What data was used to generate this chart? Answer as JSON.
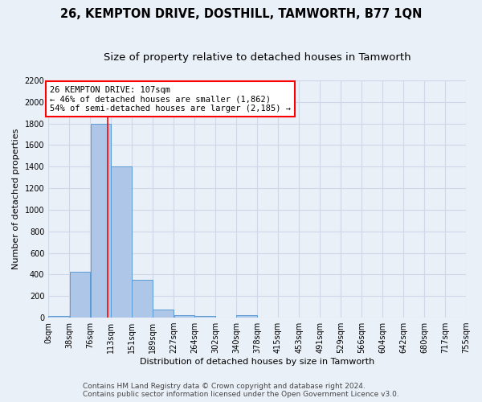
{
  "title": "26, KEMPTON DRIVE, DOSTHILL, TAMWORTH, B77 1QN",
  "subtitle": "Size of property relative to detached houses in Tamworth",
  "xlabel": "Distribution of detached houses by size in Tamworth",
  "ylabel": "Number of detached properties",
  "footer_line1": "Contains HM Land Registry data © Crown copyright and database right 2024.",
  "footer_line2": "Contains public sector information licensed under the Open Government Licence v3.0.",
  "bin_edges": [
    0,
    38,
    76,
    113,
    151,
    189,
    227,
    264,
    302,
    340,
    378,
    415,
    453,
    491,
    529,
    566,
    604,
    642,
    680,
    717,
    755
  ],
  "bar_heights": [
    15,
    425,
    1800,
    1400,
    350,
    75,
    25,
    15,
    0,
    20,
    0,
    0,
    0,
    0,
    0,
    0,
    0,
    0,
    0,
    0
  ],
  "bar_color": "#aec6e8",
  "bar_edgecolor": "#5b9bd5",
  "grid_color": "#d0d8e8",
  "property_line_x": 107,
  "property_line_color": "red",
  "annotation_text": "26 KEMPTON DRIVE: 107sqm\n← 46% of detached houses are smaller (1,862)\n54% of semi-detached houses are larger (2,185) →",
  "annotation_box_edgecolor": "red",
  "annotation_box_facecolor": "white",
  "ylim": [
    0,
    2200
  ],
  "yticks": [
    0,
    200,
    400,
    600,
    800,
    1000,
    1200,
    1400,
    1600,
    1800,
    2000,
    2200
  ],
  "background_color": "#eaf0f8",
  "plot_bg_color": "#eaf0f8",
  "title_fontsize": 10.5,
  "subtitle_fontsize": 9.5,
  "axis_label_fontsize": 8,
  "tick_fontsize": 7,
  "annotation_fontsize": 7.5,
  "footer_fontsize": 6.5
}
